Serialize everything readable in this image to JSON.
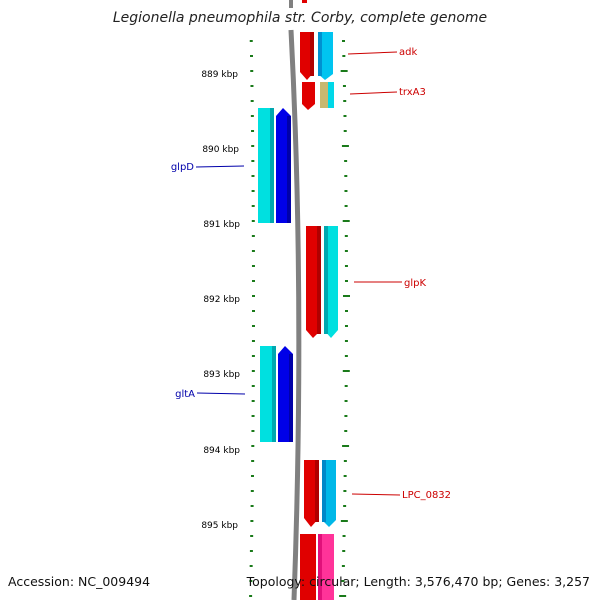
{
  "title": "Legionella pneumophila str. Corby, complete genome",
  "footer": {
    "accession": "Accession: NC_009494",
    "summary": "Topology: circular; Length: 3,576,470 bp; Genes: 3,257"
  },
  "ruler_ticks": [
    "889 kbp",
    "890 kbp",
    "891 kbp",
    "892 kbp",
    "893 kbp",
    "894 kbp",
    "895 kbp"
  ],
  "gene_labels": {
    "forward": [
      "adk",
      "trxA3",
      "glpK",
      "LPC_0832"
    ],
    "reverse": [
      "glpD",
      "gltA"
    ]
  },
  "colors": {
    "backbone": "#808080",
    "ruler": "#1a7a1a",
    "forward_gene": "#e00000",
    "reverse_gene": "#0000dd",
    "cds": "#00d8e8",
    "rna": "#ff3399",
    "trna": "#c8b870",
    "forward_label": "#cc0000",
    "reverse_label": "#0000aa"
  }
}
